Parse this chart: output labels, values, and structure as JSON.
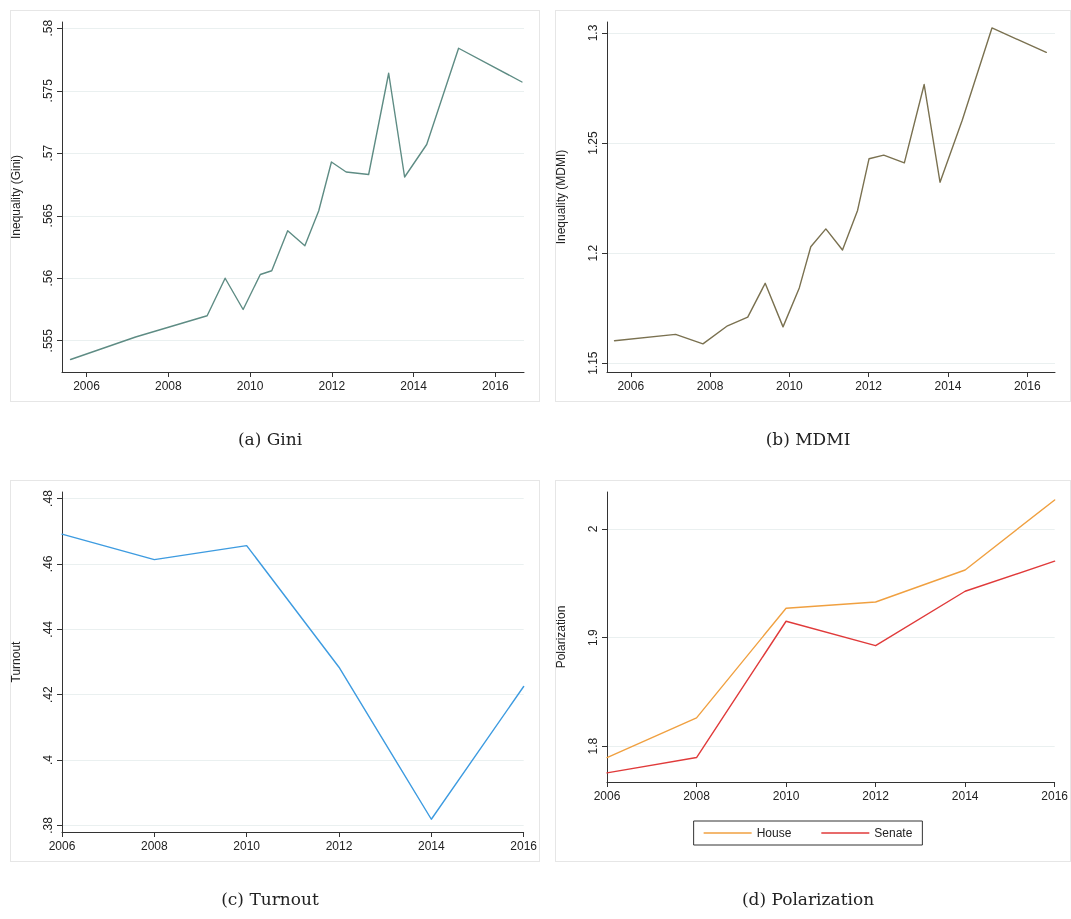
{
  "chart_data": [
    {
      "type": "line",
      "title": "(a) Gini",
      "ylabel": "Inequality (Gini)",
      "grid": "y",
      "legend": false,
      "marker": "none",
      "line_style": "solid",
      "xlim": [
        2005.4,
        2016.7
      ],
      "xticks": [
        2006,
        2008,
        2010,
        2012,
        2014,
        2016
      ],
      "ylim": [
        0.5525,
        0.5805
      ],
      "yticks": [
        {
          "value": 0.555,
          "label": ".555"
        },
        {
          "value": 0.56,
          "label": ".56"
        },
        {
          "value": 0.565,
          "label": ".565"
        },
        {
          "value": 0.57,
          "label": ".57"
        },
        {
          "value": 0.575,
          "label": ".575"
        },
        {
          "value": 0.58,
          "label": ".58"
        }
      ],
      "series": [
        {
          "color": "#5e8c84",
          "x": [
            2005.61,
            2007.2,
            2008.95,
            2009.39,
            2009.83,
            2010.25,
            2010.53,
            2010.92,
            2011.34,
            2011.68,
            2011.99,
            2012.35,
            2012.9,
            2013.39,
            2013.78,
            2014.32,
            2015.1,
            2016.65
          ],
          "values": [
            0.5535,
            0.5553,
            0.557,
            0.56,
            0.5575,
            0.5603,
            0.5606,
            0.5638,
            0.5626,
            0.5654,
            0.5693,
            0.5685,
            0.5683,
            0.5764,
            0.5681,
            0.5707,
            0.5784,
            0.5757
          ]
        }
      ]
    },
    {
      "type": "line",
      "title": "(b) MDMI",
      "ylabel": "Inequality (MDMI)",
      "grid": "y",
      "legend": false,
      "marker": "none",
      "line_style": "solid",
      "xlim": [
        2005.4,
        2016.7
      ],
      "xticks": [
        2006,
        2008,
        2010,
        2012,
        2014,
        2016
      ],
      "ylim": [
        1.146,
        1.305
      ],
      "yticks": [
        1.15,
        1.2,
        1.25,
        1.3
      ],
      "series": [
        {
          "color": "#7a7150",
          "x": [
            2005.59,
            2007.13,
            2007.82,
            2008.44,
            2008.95,
            2009.39,
            2009.84,
            2010.25,
            2010.54,
            2010.92,
            2011.34,
            2011.72,
            2012.01,
            2012.38,
            2012.9,
            2013.4,
            2013.8,
            2014.36,
            2015.11,
            2016.48
          ],
          "values": [
            1.1602,
            1.1631,
            1.1588,
            1.167,
            1.1709,
            1.1863,
            1.1665,
            1.1842,
            1.2029,
            1.211,
            1.2014,
            1.2194,
            1.2429,
            1.2445,
            1.241,
            1.2766,
            1.2322,
            1.2604,
            1.3023,
            1.2912
          ]
        }
      ]
    },
    {
      "type": "line",
      "title": "(c) Turnout",
      "ylabel": "Turnout",
      "grid": "y",
      "legend": false,
      "marker": "none",
      "line_style": "solid",
      "xlim": [
        2006,
        2016
      ],
      "xticks": [
        2006,
        2008,
        2010,
        2012,
        2014,
        2016
      ],
      "ylim": [
        0.378,
        0.482
      ],
      "yticks": [
        {
          "value": 0.38,
          "label": ".38"
        },
        {
          "value": 0.4,
          "label": ".4"
        },
        {
          "value": 0.42,
          "label": ".42"
        },
        {
          "value": 0.44,
          "label": ".44"
        },
        {
          "value": 0.46,
          "label": ".46"
        },
        {
          "value": 0.48,
          "label": ".48"
        }
      ],
      "series": [
        {
          "color": "#3d9be0",
          "x": [
            2006,
            2008,
            2010,
            2012,
            2014,
            2016
          ],
          "values": [
            0.4691,
            0.4613,
            0.4656,
            0.4284,
            0.3819,
            0.4225
          ]
        }
      ]
    },
    {
      "type": "line",
      "title": "(d) Polarization",
      "ylabel": "Polarization",
      "grid": "y",
      "legend": "bottom",
      "marker": "none",
      "line_style": "solid",
      "xlim": [
        2006,
        2016
      ],
      "xticks": [
        2006,
        2008,
        2010,
        2012,
        2014,
        2016
      ],
      "ylim": [
        1.767,
        2.034
      ],
      "yticks": [
        1.8,
        1.9,
        2
      ],
      "series": [
        {
          "name": "House",
          "color": "#f0a040",
          "x": [
            2006,
            2008,
            2010,
            2012,
            2014,
            2016
          ],
          "values": [
            1.7895,
            1.826,
            1.927,
            1.9327,
            1.9622,
            2.0267
          ]
        },
        {
          "name": "Senate",
          "color": "#e03a3a",
          "x": [
            2006,
            2008,
            2010,
            2012,
            2014,
            2016
          ],
          "values": [
            1.7754,
            1.7895,
            1.915,
            1.8925,
            1.9426,
            1.9703
          ]
        }
      ]
    }
  ]
}
